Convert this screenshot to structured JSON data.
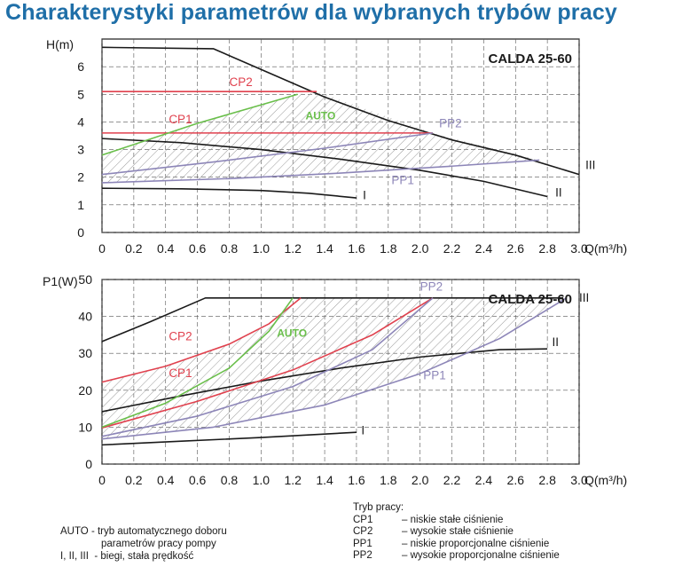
{
  "title": "Charakterystyki parametrów dla wybranych trybów pracy",
  "colors": {
    "title": "#1f6fa8",
    "black": "#1a1a1a",
    "red": "#e0414e",
    "green": "#6abf4b",
    "purple": "#8d86b8",
    "hatch": "#9a9a9a"
  },
  "chart_data": [
    {
      "type": "line",
      "model_label": "CALDA 25-60",
      "ylabel": "H(m)",
      "xlabel": "Q(m³/h)",
      "xlim": [
        0,
        3.0
      ],
      "ylim": [
        0,
        7
      ],
      "xticks": [
        "0",
        "0.2",
        "0.4",
        "0.6",
        "0.8",
        "1.0",
        "1.2",
        "1.4",
        "1.6",
        "1.8",
        "2.0",
        "2.2",
        "2.4",
        "2.6",
        "2.8",
        "3.0"
      ],
      "yticks": [
        "0",
        "1",
        "2",
        "3",
        "4",
        "5",
        "6"
      ],
      "grid": true,
      "series": [
        {
          "name": "I",
          "color": "black",
          "x": [
            0,
            0.5,
            1.0,
            1.3,
            1.6
          ],
          "y": [
            1.6,
            1.58,
            1.52,
            1.42,
            1.25
          ]
        },
        {
          "name": "II",
          "color": "black",
          "x": [
            0,
            0.5,
            1.0,
            1.5,
            2.0,
            2.4,
            2.8
          ],
          "y": [
            3.4,
            3.25,
            3.0,
            2.65,
            2.25,
            1.85,
            1.3
          ]
        },
        {
          "name": "III",
          "color": "black",
          "x": [
            0,
            0.7,
            1.0,
            1.4,
            1.8,
            2.2,
            2.6,
            3.0
          ],
          "y": [
            6.7,
            6.65,
            5.9,
            4.9,
            4.05,
            3.35,
            2.8,
            2.1
          ]
        },
        {
          "name": "CP2",
          "color": "red",
          "x": [
            0,
            1.35
          ],
          "y": [
            5.1,
            5.1
          ]
        },
        {
          "name": "CP1",
          "color": "red",
          "x": [
            0,
            2.08
          ],
          "y": [
            3.6,
            3.6
          ]
        },
        {
          "name": "AUTO",
          "color": "green",
          "x": [
            0,
            0.6,
            1.23
          ],
          "y": [
            2.8,
            3.95,
            5.0
          ]
        },
        {
          "name": "PP1",
          "color": "purple",
          "x": [
            0,
            0.8,
            1.5,
            2.2,
            2.75
          ],
          "y": [
            1.8,
            1.95,
            2.15,
            2.4,
            2.62
          ]
        },
        {
          "name": "PP2",
          "color": "purple",
          "x": [
            0,
            0.7,
            1.4,
            2.08
          ],
          "y": [
            2.1,
            2.55,
            3.05,
            3.6
          ]
        }
      ],
      "hatch_region": {
        "x": [
          0,
          0.6,
          1.23,
          1.35,
          2.08,
          2.75,
          2.75,
          2.2,
          1.5,
          0.8,
          0
        ],
        "y": [
          2.8,
          3.95,
          5.0,
          5.1,
          3.6,
          2.62,
          2.62,
          2.4,
          2.15,
          1.95,
          1.8
        ]
      },
      "annotations": [
        {
          "text": "CP2",
          "x": 0.8,
          "y": 5.3,
          "color": "red"
        },
        {
          "text": "CP1",
          "x": 0.42,
          "y": 3.95,
          "color": "red"
        },
        {
          "text": "AUTO",
          "x": 1.28,
          "y": 4.1,
          "color": "green",
          "bold": true
        },
        {
          "text": "PP2",
          "x": 2.12,
          "y": 3.8,
          "color": "purple"
        },
        {
          "text": "PP1",
          "x": 1.82,
          "y": 1.75,
          "color": "purple"
        },
        {
          "text": "I",
          "x": 1.64,
          "y": 1.2,
          "color": "black"
        },
        {
          "text": "II",
          "x": 2.85,
          "y": 1.3,
          "color": "black"
        },
        {
          "text": "III",
          "x": 3.04,
          "y": 2.3,
          "color": "black"
        }
      ]
    },
    {
      "type": "line",
      "model_label": "CALDA 25-60",
      "ylabel": "P1(W)",
      "xlabel": "Q(m³/h)",
      "xlim": [
        0,
        3.0
      ],
      "ylim": [
        0,
        50
      ],
      "xticks": [
        "0",
        "0.2",
        "0.4",
        "0.6",
        "0.8",
        "1.0",
        "1.2",
        "1.4",
        "1.6",
        "1.8",
        "2.0",
        "2.2",
        "2.4",
        "2.6",
        "2.8",
        "3.0"
      ],
      "yticks": [
        "0",
        "10",
        "20",
        "30",
        "40",
        "50"
      ],
      "grid": true,
      "series": [
        {
          "name": "I",
          "color": "black",
          "x": [
            0,
            0.5,
            1.0,
            1.6
          ],
          "y": [
            5.2,
            6.2,
            7.2,
            8.6
          ]
        },
        {
          "name": "II",
          "color": "black",
          "x": [
            0,
            0.5,
            1.0,
            1.5,
            2.0,
            2.5,
            2.8
          ],
          "y": [
            14.2,
            18.5,
            22.5,
            26.0,
            29.0,
            31.0,
            31.2
          ]
        },
        {
          "name": "III",
          "color": "black",
          "x": [
            0,
            0.3,
            0.65,
            2.9
          ],
          "y": [
            33.2,
            38.5,
            45.0,
            45.0
          ]
        },
        {
          "name": "CP2",
          "color": "red",
          "x": [
            0,
            0.4,
            0.8,
            1.05,
            1.25
          ],
          "y": [
            22.2,
            26.5,
            32.5,
            38.0,
            45.0
          ]
        },
        {
          "name": "CP1",
          "color": "red",
          "x": [
            0,
            0.6,
            1.2,
            1.7,
            2.08
          ],
          "y": [
            9.8,
            17.0,
            25.5,
            35.0,
            45.0
          ]
        },
        {
          "name": "AUTO",
          "color": "green",
          "x": [
            0,
            0.4,
            0.8,
            1.05,
            1.2
          ],
          "y": [
            10.0,
            16.5,
            26.0,
            36.0,
            45.0
          ]
        },
        {
          "name": "PP1",
          "color": "purple",
          "x": [
            0,
            0.7,
            1.4,
            2.0,
            2.5,
            2.92
          ],
          "y": [
            6.8,
            10.0,
            16.0,
            24.5,
            34.0,
            45.0
          ]
        },
        {
          "name": "PP2",
          "color": "purple",
          "x": [
            0,
            0.6,
            1.2,
            1.7,
            2.08
          ],
          "y": [
            7.5,
            13.0,
            21.0,
            31.0,
            45.0
          ]
        }
      ],
      "hatch_region": {
        "x": [
          0,
          0.4,
          0.8,
          1.05,
          1.25,
          2.92,
          2.92,
          2.5,
          2.0,
          1.4,
          0.7,
          0
        ],
        "y": [
          22.2,
          26.5,
          32.5,
          38.0,
          45.0,
          45.0,
          45.0,
          34.0,
          24.5,
          16.0,
          10.0,
          6.8
        ]
      },
      "annotations": [
        {
          "text": "CP2",
          "x": 0.42,
          "y": 33.5,
          "color": "red"
        },
        {
          "text": "CP1",
          "x": 0.42,
          "y": 23.5,
          "color": "red"
        },
        {
          "text": "AUTO",
          "x": 1.1,
          "y": 34.5,
          "color": "green",
          "bold": true
        },
        {
          "text": "PP2",
          "x": 2.0,
          "y": 47.0,
          "color": "purple"
        },
        {
          "text": "PP1",
          "x": 2.02,
          "y": 23.0,
          "color": "purple"
        },
        {
          "text": "I",
          "x": 1.63,
          "y": 8.0,
          "color": "black"
        },
        {
          "text": "II",
          "x": 2.83,
          "y": 32.0,
          "color": "black"
        },
        {
          "text": "III",
          "x": 3.0,
          "y": 44.0,
          "color": "black"
        }
      ]
    }
  ],
  "legend_left": {
    "auto_code": "AUTO",
    "auto_desc_1": "- tryb automatycznego doboru",
    "auto_desc_2": "parametrów pracy pompy",
    "speeds_code": "I, II, III",
    "speeds_desc": "- biegi, stała prędkość"
  },
  "legend_right": {
    "heading": "Tryb pracy:",
    "items": [
      {
        "code": "CP1",
        "desc": "– niskie stałe ciśnienie"
      },
      {
        "code": "CP2",
        "desc": "– wysokie stałe ciśnienie"
      },
      {
        "code": "PP1",
        "desc": "– niskie proporcjonalne ciśnienie"
      },
      {
        "code": "PP2",
        "desc": "– wysokie proporcjonalne ciśnienie"
      }
    ]
  }
}
